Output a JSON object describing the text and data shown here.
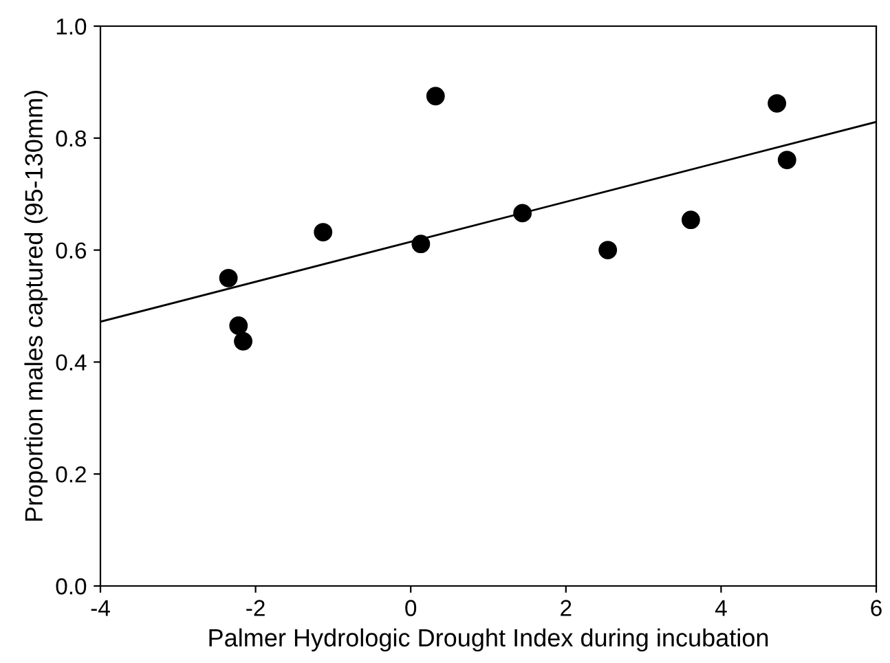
{
  "chart_data": {
    "type": "scatter",
    "xlabel": "Palmer Hydrologic Drought Index during incubation",
    "ylabel": "Proportion males captured (95-130mm)",
    "xlim": [
      -4,
      6
    ],
    "xticks": [
      -4,
      -2,
      0,
      2,
      4,
      6
    ],
    "ylim": [
      0,
      1
    ],
    "yticks": [
      {
        "value": 0,
        "label": "0.0"
      },
      0.2,
      0.4,
      0.6,
      0.8,
      {
        "value": 1,
        "label": "1.0"
      }
    ],
    "grid": false,
    "legend": false,
    "series": [
      {
        "color": "#000000",
        "marker": "circle",
        "x": [
          -2.35,
          -2.22,
          -2.16,
          -1.13,
          0.13,
          0.32,
          1.44,
          2.54,
          3.61,
          4.72,
          4.85
        ],
        "values": [
          0.55,
          0.465,
          0.437,
          0.632,
          0.611,
          0.875,
          0.666,
          0.6,
          0.654,
          0.862,
          0.761
        ]
      },
      {
        "type": "line",
        "color": "#000000",
        "marker": "none",
        "line_style": "solid",
        "x": [
          -4,
          6
        ],
        "values": [
          0.472,
          0.829
        ]
      }
    ]
  }
}
